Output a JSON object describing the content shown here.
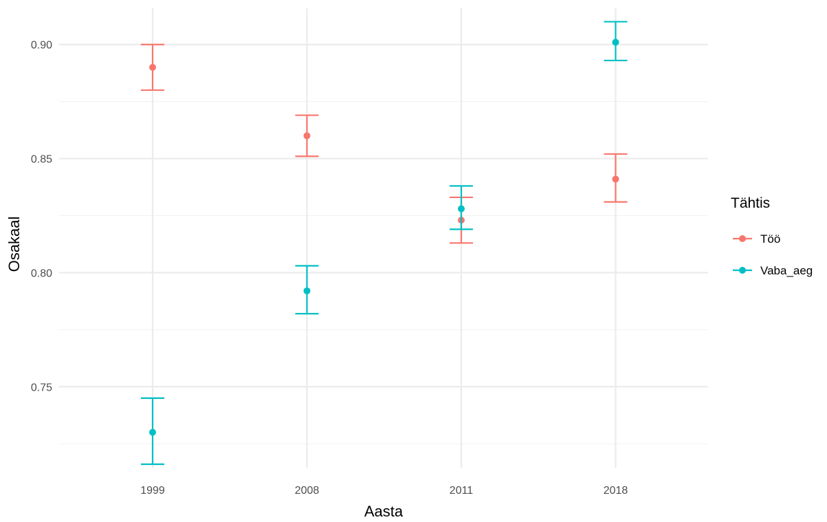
{
  "chart_data": {
    "type": "scatter",
    "title": "",
    "xlabel": "Aasta",
    "ylabel": "Osakaal",
    "categories": [
      "1999",
      "2008",
      "2011",
      "2018"
    ],
    "y_ticks": [
      "0.75",
      "0.80",
      "0.85",
      "0.90"
    ],
    "y_tick_values": [
      0.75,
      0.8,
      0.85,
      0.9
    ],
    "ylim": [
      0.7145,
      0.9159
    ],
    "grid": true,
    "legend_title": "Tähtis",
    "legend_position": "right",
    "error_bars": true,
    "series": [
      {
        "name": "Töö",
        "color": "#F8766D",
        "values": [
          0.89,
          0.86,
          0.823,
          0.841
        ],
        "lower": [
          0.88,
          0.851,
          0.813,
          0.831
        ],
        "upper": [
          0.9,
          0.869,
          0.833,
          0.852
        ]
      },
      {
        "name": "Vaba_aeg",
        "color": "#00BFC4",
        "values": [
          0.73,
          0.792,
          0.828,
          0.901
        ],
        "lower": [
          0.716,
          0.782,
          0.819,
          0.893
        ],
        "upper": [
          0.745,
          0.803,
          0.838,
          0.91
        ]
      }
    ]
  }
}
